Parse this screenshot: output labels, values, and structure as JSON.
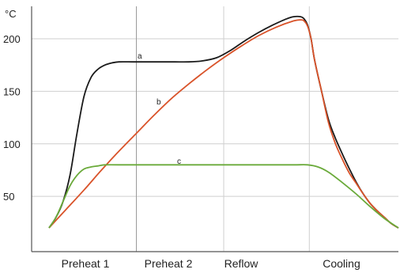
{
  "chart_data": {
    "type": "line",
    "ylabel": "°C",
    "y_ticks": [
      "200",
      "150",
      "100",
      "50"
    ],
    "y_tick_values": [
      200,
      150,
      100,
      50
    ],
    "ylim": [
      10,
      222
    ],
    "xlim": [
      0,
      100
    ],
    "phases": [
      "Preheat 1",
      "Preheat 2",
      "Reflow",
      "Cooling"
    ],
    "phase_boundaries": [
      25,
      50,
      74.5
    ],
    "grid": true,
    "series": [
      {
        "name": "a",
        "color": "#1a1a1a",
        "x": [
          0,
          2,
          4,
          6,
          8,
          10,
          12,
          14,
          16,
          18,
          20,
          24,
          28,
          32,
          36,
          40,
          44,
          48,
          52,
          56,
          60,
          64,
          68,
          70,
          72,
          73,
          74,
          75,
          76,
          78,
          80,
          82,
          84,
          86,
          88,
          90,
          92,
          94,
          96,
          98,
          100
        ],
        "y": [
          20,
          30,
          45,
          70,
          110,
          145,
          163,
          171,
          175,
          177,
          178,
          178,
          178,
          178,
          178,
          178,
          179,
          182,
          189,
          198,
          206,
          213,
          219,
          221,
          221,
          219,
          213,
          200,
          180,
          150,
          123,
          105,
          90,
          76,
          63,
          52,
          43,
          36,
          30,
          24,
          20
        ]
      },
      {
        "name": "b",
        "color": "#d9532a",
        "x": [
          0,
          5,
          10,
          15,
          20,
          25,
          30,
          35,
          40,
          45,
          50,
          55,
          60,
          65,
          70,
          72,
          73,
          74,
          75,
          76,
          78,
          80,
          82,
          84,
          86,
          88,
          90,
          92,
          94,
          96,
          98,
          100
        ],
        "y": [
          20,
          38,
          56,
          75,
          93,
          110,
          127,
          143,
          157,
          170,
          182,
          193,
          203,
          211,
          217,
          218,
          217,
          212,
          200,
          180,
          150,
          120,
          100,
          85,
          72,
          62,
          52,
          43,
          36,
          30,
          24,
          20
        ]
      },
      {
        "name": "c",
        "color": "#6aaa3a",
        "x": [
          0,
          2,
          4,
          6,
          8,
          10,
          12,
          14,
          16,
          20,
          30,
          40,
          50,
          60,
          70,
          74,
          77,
          80,
          84,
          88,
          92,
          96,
          100
        ],
        "y": [
          20,
          30,
          45,
          60,
          70,
          76,
          78,
          79,
          80,
          80,
          80,
          80,
          80,
          80,
          80,
          80,
          78,
          73,
          63,
          52,
          40,
          29,
          20
        ]
      }
    ]
  }
}
